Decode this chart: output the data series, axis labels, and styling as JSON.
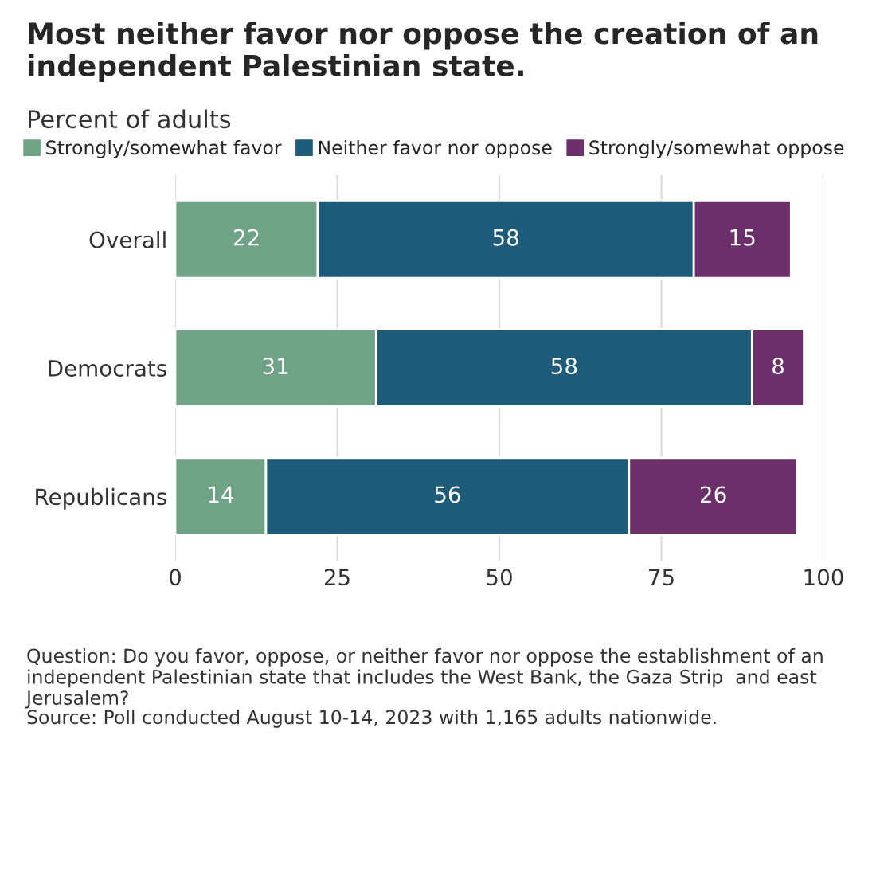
{
  "chart_data": {
    "type": "bar",
    "orientation": "horizontal",
    "stacked": true,
    "title": "Most neither favor nor oppose the creation of an independent Palestinian state.",
    "subtitle": "Percent of adults",
    "categories": [
      "Overall",
      "Democrats",
      "Republicans"
    ],
    "series": [
      {
        "name": "Strongly/somewhat favor",
        "color": "#6fa287",
        "values": [
          22,
          31,
          14
        ]
      },
      {
        "name": "Neither favor nor oppose",
        "color": "#1d5b79",
        "values": [
          58,
          58,
          56
        ]
      },
      {
        "name": "Strongly/somewhat oppose",
        "color": "#6b2f69",
        "values": [
          15,
          8,
          26
        ]
      }
    ],
    "xlim": [
      0,
      100
    ],
    "xticks": [
      0,
      25,
      50,
      75,
      100
    ],
    "grid": "x",
    "legend": "top",
    "data_labels": true,
    "annotations": [
      "Question: Do you favor, oppose, or neither favor nor oppose the establishment of an independent Palestinian state that includes the West Bank, the Gaza Strip  and east Jerusalem?",
      "Source: Poll conducted August 10-14, 2023 with 1,165 adults nationwide."
    ]
  }
}
